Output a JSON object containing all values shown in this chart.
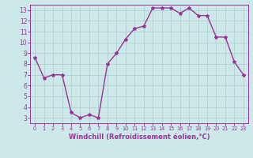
{
  "x": [
    0,
    1,
    2,
    3,
    4,
    5,
    6,
    7,
    8,
    9,
    10,
    11,
    12,
    13,
    14,
    15,
    16,
    17,
    18,
    19,
    20,
    21,
    22,
    23
  ],
  "y": [
    8.6,
    6.7,
    7.0,
    7.0,
    3.5,
    3.0,
    3.3,
    3.0,
    8.0,
    9.0,
    10.3,
    11.3,
    11.5,
    13.2,
    13.2,
    13.2,
    12.7,
    13.2,
    12.5,
    12.5,
    10.5,
    10.5,
    8.2,
    7.0
  ],
  "line_color": "#993399",
  "marker": "*",
  "marker_size": 3,
  "bg_color": "#cce8e8",
  "grid_color": "#aacccc",
  "xlabel": "Windchill (Refroidissement éolien,°C)",
  "xlabel_color": "#993399",
  "tick_color": "#993399",
  "spine_color": "#993399",
  "xlim": [
    -0.5,
    23.5
  ],
  "ylim": [
    2.5,
    13.5
  ],
  "yticks": [
    3,
    4,
    5,
    6,
    7,
    8,
    9,
    10,
    11,
    12,
    13
  ],
  "xticks": [
    0,
    1,
    2,
    3,
    4,
    5,
    6,
    7,
    8,
    9,
    10,
    11,
    12,
    13,
    14,
    15,
    16,
    17,
    18,
    19,
    20,
    21,
    22,
    23
  ],
  "xlabel_fontsize": 6,
  "tick_fontsize_x": 4.8,
  "tick_fontsize_y": 5.5,
  "linewidth": 1.0
}
